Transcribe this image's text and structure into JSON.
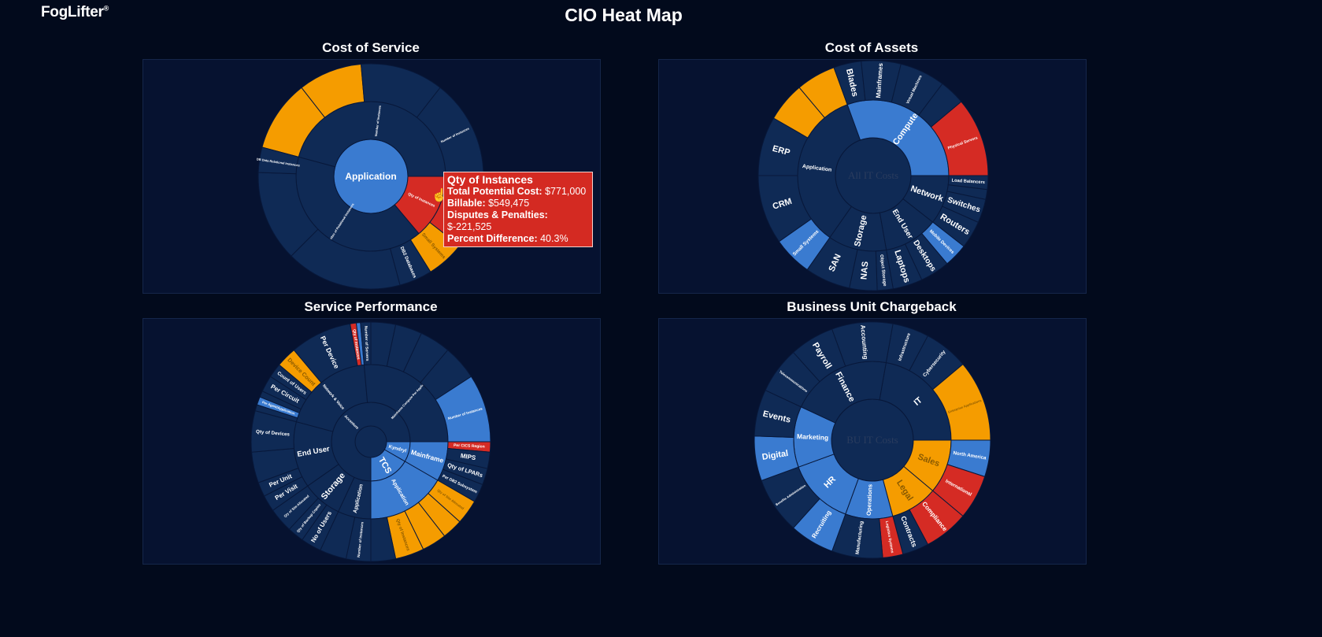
{
  "header": {
    "logo": "FogLifter",
    "logo_mark": "®",
    "title": "CIO Heat Map"
  },
  "colors": {
    "dark": "#0f2a55",
    "blue": "#3a7bd0",
    "orange": "#f59c00",
    "red": "#d52b24",
    "stroke": "#08183a",
    "muted_text": "#2a3c5e"
  },
  "tooltip": {
    "title": "Qty of Instances",
    "rows": [
      {
        "label": "Total Potential Cost:",
        "value": "$771,000"
      },
      {
        "label": "Billable:",
        "value": "$549,475"
      },
      {
        "label": "Disputes & Penalties:",
        "value": "$-221,525"
      },
      {
        "label": "Percent Difference:",
        "value": "40.3%"
      }
    ]
  },
  "charts": [
    {
      "title": "Cost of Service",
      "center": {
        "label": "Application",
        "color": "blue"
      },
      "rings": [
        [
          {
            "label": "Number of Instances",
            "value": 165,
            "color": "dark"
          },
          {
            "label": "Qty of Instances",
            "value": 50,
            "color": "red"
          },
          {
            "label": "Number of Relational Instances",
            "value": 145,
            "color": "dark"
          }
        ],
        [
          {
            "label": "",
            "value": 37,
            "color": "orange"
          },
          {
            "label": "",
            "value": 33,
            "color": "orange"
          },
          {
            "label": "",
            "value": 43,
            "color": "dark"
          },
          {
            "label": "Number of Instances",
            "value": 52,
            "color": "dark"
          },
          {
            "label": "",
            "value": 38,
            "color": "red"
          },
          {
            "label": "Small Systems",
            "value": 20,
            "color": "orange"
          },
          {
            "label": "DB2 Databases",
            "value": 17,
            "color": "dark"
          },
          {
            "label": "",
            "value": 60,
            "color": "dark"
          },
          {
            "label": "",
            "value": 47,
            "color": "dark"
          },
          {
            "label": "DB Data Relational Instances",
            "value": 13,
            "color": "dark"
          }
        ]
      ]
    },
    {
      "title": "Cost of Assets",
      "center": {
        "label": "All IT Costs",
        "color": "dark"
      },
      "rings": [
        [
          {
            "label": "Application",
            "value": 125,
            "color": "dark"
          },
          {
            "label": "Compute",
            "value": 110,
            "color": "blue"
          },
          {
            "label": "Network",
            "value": 38,
            "color": "dark"
          },
          {
            "label": "End User",
            "value": 42,
            "color": "dark"
          },
          {
            "label": "Storage",
            "value": 45,
            "color": "dark"
          }
        ],
        [
          {
            "label": "Small Systems",
            "value": 20,
            "color": "blue"
          },
          {
            "label": "CRM",
            "value": 35,
            "color": "dark"
          },
          {
            "label": "ERP",
            "value": 30,
            "color": "dark"
          },
          {
            "label": "",
            "value": 20,
            "color": "orange"
          },
          {
            "label": "",
            "value": 20,
            "color": "orange"
          },
          {
            "label": "Blades",
            "value": 14,
            "color": "dark"
          },
          {
            "label": "Mainframes",
            "value": 20,
            "color": "dark"
          },
          {
            "label": "Virtual Machines",
            "value": 23,
            "color": "dark"
          },
          {
            "label": "",
            "value": 13,
            "color": "dark"
          },
          {
            "label": "Physical Servers",
            "value": 40,
            "color": "red"
          },
          {
            "label": "Load Balancers",
            "value": 7,
            "color": "dark"
          },
          {
            "label": "",
            "value": 5,
            "color": "dark"
          },
          {
            "label": "Switches",
            "value": 12,
            "color": "dark"
          },
          {
            "label": "Routers",
            "value": 14,
            "color": "dark"
          },
          {
            "label": "Mobile Devices",
            "value": 12,
            "color": "blue"
          },
          {
            "label": "Desktops",
            "value": 15,
            "color": "dark"
          },
          {
            "label": "Laptops",
            "value": 15,
            "color": "dark"
          },
          {
            "label": "Object Storage",
            "value": 8,
            "color": "dark"
          },
          {
            "label": "NAS",
            "value": 14,
            "color": "dark"
          },
          {
            "label": "SAN",
            "value": 23,
            "color": "dark"
          }
        ]
      ]
    },
    {
      "title": "Service Performance",
      "center": {
        "label": "",
        "color": "dark"
      },
      "rings": [
        [
          {
            "label": "Accenture",
            "value": 270,
            "color": "dark"
          },
          {
            "label": "Kyndryl",
            "value": 30,
            "color": "blue"
          },
          {
            "label": "TCS",
            "value": 60,
            "color": "blue"
          }
        ],
        [
          {
            "label": "Application",
            "value": 25,
            "color": "dark"
          },
          {
            "label": "Storage",
            "value": 30,
            "color": "dark"
          },
          {
            "label": "End User",
            "value": 50,
            "color": "dark"
          },
          {
            "label": "Network & Voice",
            "value": 70,
            "color": "dark"
          },
          {
            "label": "Mainframe Compute Per Application",
            "value": 95,
            "color": "dark"
          },
          {
            "label": "Mainframe",
            "value": 30,
            "color": "blue"
          },
          {
            "label": "Application",
            "value": 60,
            "color": "blue"
          }
        ],
        [
          {
            "label": "Number of Instances",
            "value": 12,
            "color": "dark"
          },
          {
            "label": "",
            "value": 13,
            "color": "dark"
          },
          {
            "label": "No of Users",
            "value": 10,
            "color": "dark"
          },
          {
            "label": "Qty of Backup Copies",
            "value": 8,
            "color": "dark"
          },
          {
            "label": "Qty of Site Allocated",
            "value": 12,
            "color": "dark"
          },
          {
            "label": "Per Visit",
            "value": 8,
            "color": "dark"
          },
          {
            "label": "Per Unit",
            "value": 7,
            "color": "dark"
          },
          {
            "label": "",
            "value": 15,
            "color": "dark"
          },
          {
            "label": "Qty of Devices",
            "value": 20,
            "color": "dark"
          },
          {
            "label": "",
            "value": 3,
            "color": "dark"
          },
          {
            "label": "Per Agent/Application",
            "value": 4,
            "color": "blue"
          },
          {
            "label": "",
            "value": 3,
            "color": "dark"
          },
          {
            "label": "Per Circuit",
            "value": 8,
            "color": "dark"
          },
          {
            "label": "Count of Users",
            "value": 7,
            "color": "dark"
          },
          {
            "label": "Device Count",
            "value": 10,
            "color": "orange"
          },
          {
            "label": "Per Device",
            "value": 30,
            "color": "dark"
          },
          {
            "label": "Qty of Instances",
            "value": 3,
            "color": "red"
          },
          {
            "label": "",
            "value": 2,
            "color": "blue"
          },
          {
            "label": "Number of Servers",
            "value": 5,
            "color": "dark"
          },
          {
            "label": "",
            "value": 12,
            "color": "dark"
          },
          {
            "label": "",
            "value": 13,
            "color": "dark"
          },
          {
            "label": "",
            "value": 15,
            "color": "dark"
          },
          {
            "label": "",
            "value": 17,
            "color": "dark"
          },
          {
            "label": "Number of Instances",
            "value": 33,
            "color": "blue"
          },
          {
            "label": "Per CICS Region",
            "value": 5,
            "color": "red"
          },
          {
            "label": "MIPS",
            "value": 8,
            "color": "dark"
          },
          {
            "label": "Qty of LPARs",
            "value": 8,
            "color": "dark"
          },
          {
            "label": "Per DB2 Subsystem",
            "value": 9,
            "color": "dark"
          },
          {
            "label": "Qty of Site Allocated",
            "value": 12,
            "color": "orange"
          },
          {
            "label": "",
            "value": 10,
            "color": "orange"
          },
          {
            "label": "",
            "value": 12,
            "color": "orange"
          },
          {
            "label": "Qty of Instances",
            "value": 14,
            "color": "orange"
          },
          {
            "label": "",
            "value": 12,
            "color": "dark"
          }
        ]
      ]
    },
    {
      "title": "Business Unit Chargeback",
      "center": {
        "label": "BU IT Costs",
        "color": "dark"
      },
      "rings": [
        [
          {
            "label": "IT",
            "value": 80,
            "color": "dark"
          },
          {
            "label": "Sales",
            "value": 40,
            "color": "orange"
          },
          {
            "label": "Legal",
            "value": 35,
            "color": "orange"
          },
          {
            "label": "Operations",
            "value": 35,
            "color": "blue"
          },
          {
            "label": "HR",
            "value": 50,
            "color": "blue"
          },
          {
            "label": "Marketing",
            "value": 45,
            "color": "blue"
          },
          {
            "label": "Finance",
            "value": 75,
            "color": "dark"
          }
        ],
        [
          {
            "label": "Infrastructure",
            "value": 18,
            "color": "dark"
          },
          {
            "label": "Cybersecurity",
            "value": 22,
            "color": "dark"
          },
          {
            "label": "Enterprise Applications",
            "value": 40,
            "color": "orange"
          },
          {
            "label": "North America",
            "value": 18,
            "color": "blue"
          },
          {
            "label": "International",
            "value": 22,
            "color": "red"
          },
          {
            "label": "Compliance",
            "value": 22,
            "color": "red"
          },
          {
            "label": "Contracts",
            "value": 13,
            "color": "dark"
          },
          {
            "label": "Logistics Systems",
            "value": 10,
            "color": "red"
          },
          {
            "label": "Manufacturing",
            "value": 25,
            "color": "dark"
          },
          {
            "label": "Recruiting",
            "value": 22,
            "color": "blue"
          },
          {
            "label": "Benefits Administration",
            "value": 28,
            "color": "dark"
          },
          {
            "label": "Digital",
            "value": 22,
            "color": "blue"
          },
          {
            "label": "Events",
            "value": 23,
            "color": "dark"
          },
          {
            "label": "Telecommunications",
            "value": 23,
            "color": "dark"
          },
          {
            "label": "Payroll",
            "value": 22,
            "color": "dark"
          },
          {
            "label": "Accounting",
            "value": 30,
            "color": "dark"
          }
        ]
      ]
    }
  ]
}
